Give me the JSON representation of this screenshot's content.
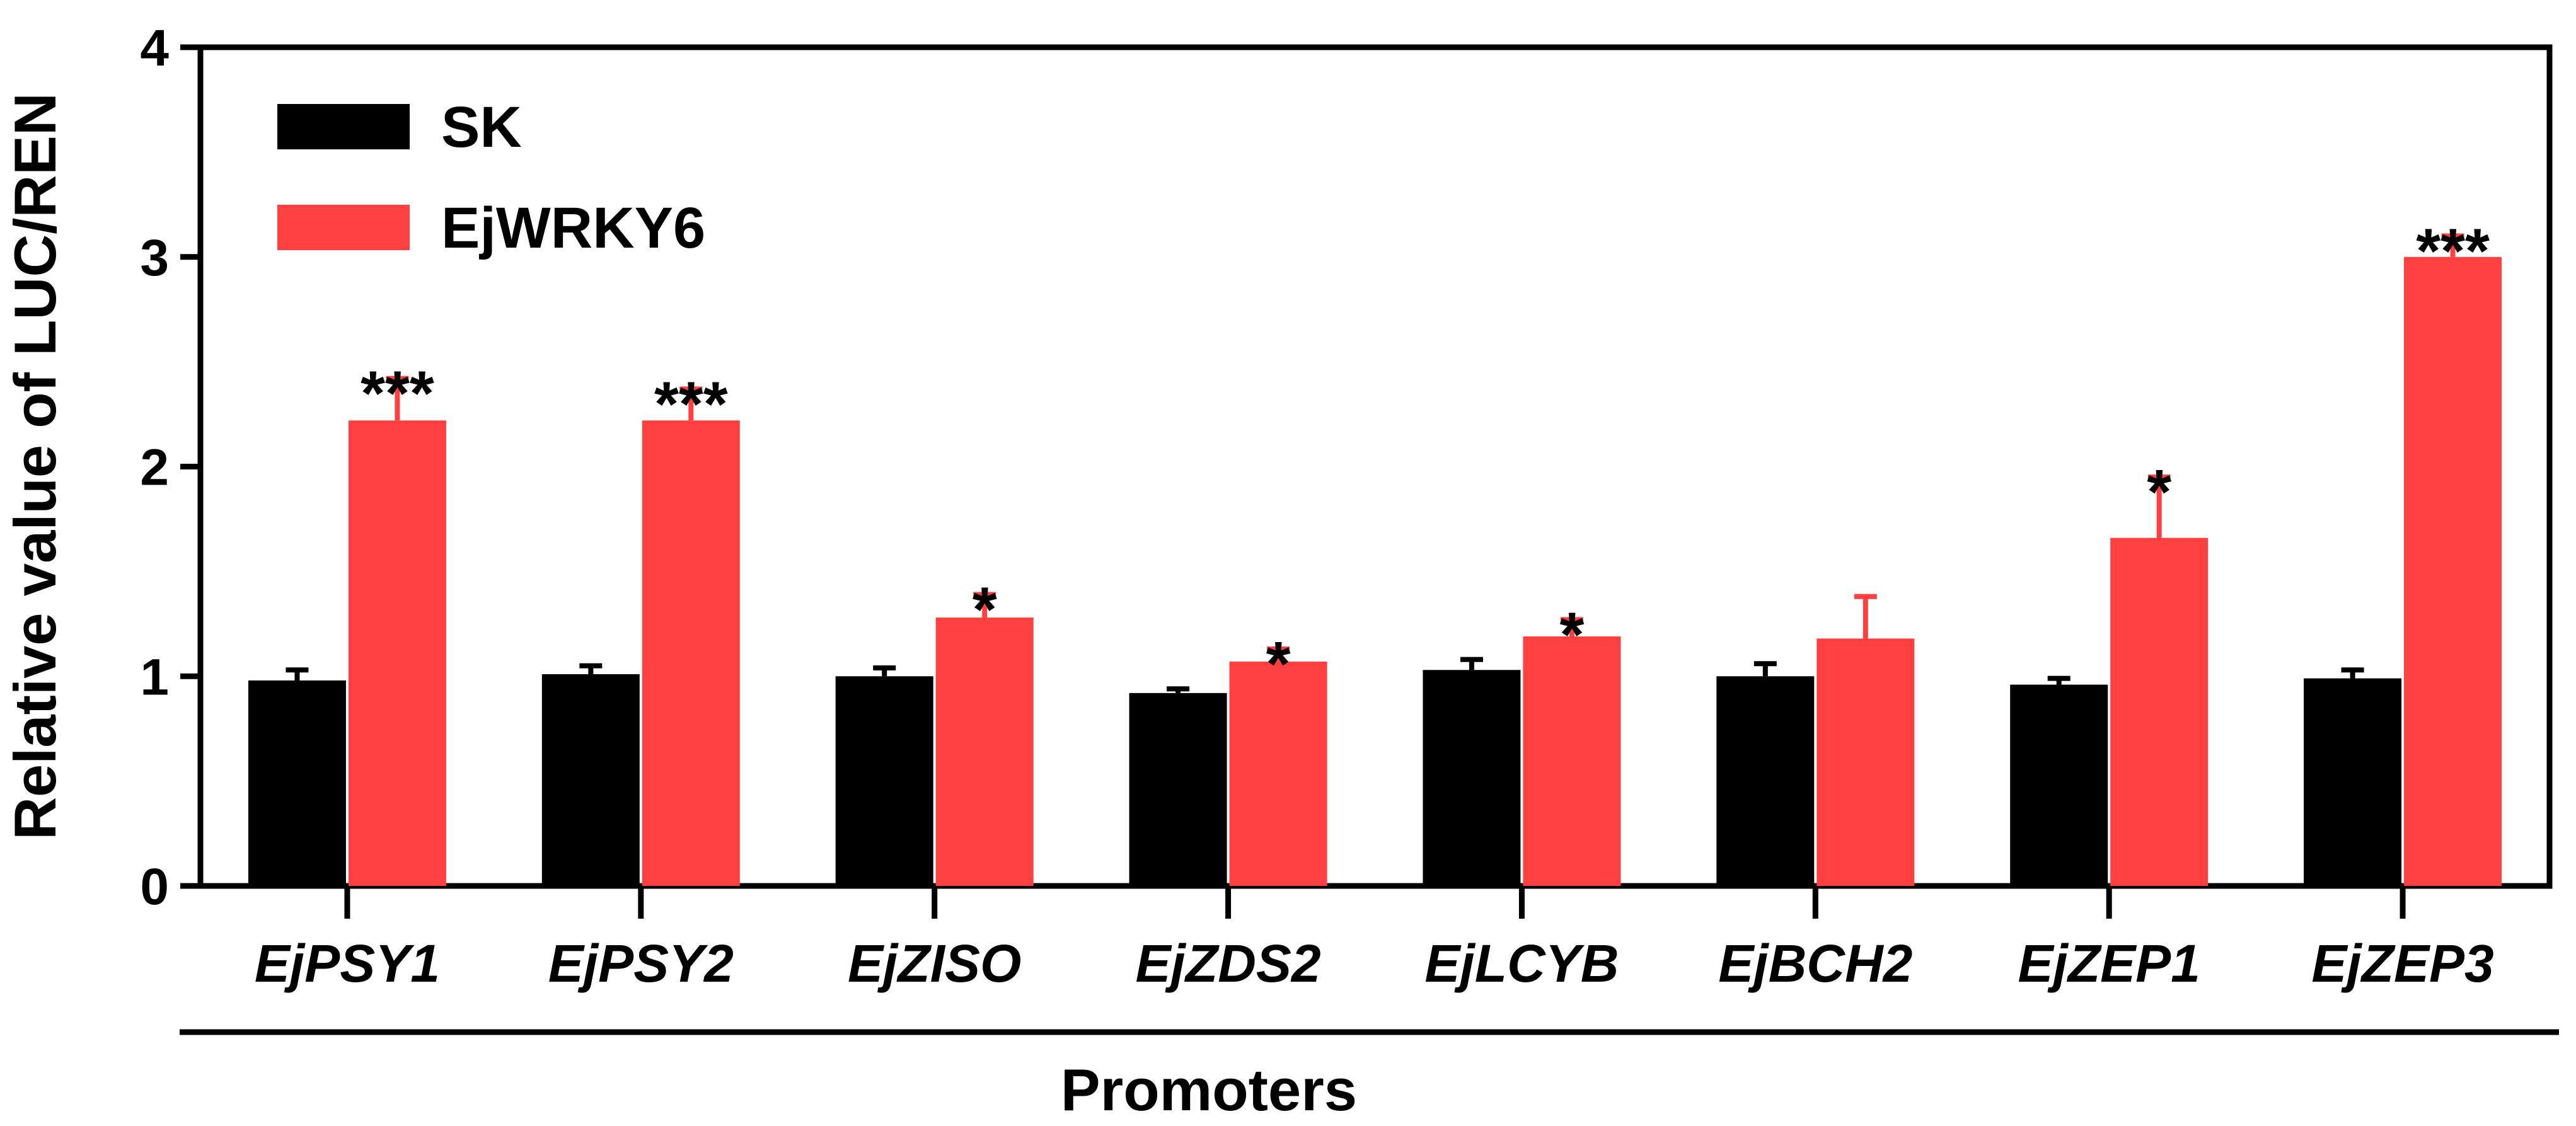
{
  "chart_data": {
    "type": "bar",
    "ylabel": "Relative value of LUC/REN",
    "xlabel": "Promoters",
    "ylim": [
      0,
      4
    ],
    "yticks": [
      "0",
      "1",
      "2",
      "3",
      "4"
    ],
    "categories": [
      "EjPSY1",
      "EjPSY2",
      "EjZISO",
      "EjZDS2",
      "EjLCYB",
      "EjBCH2",
      "EjZEP1",
      "EjZEP3"
    ],
    "series": [
      {
        "name": "SK",
        "color": "#000000",
        "values": [
          0.98,
          1.01,
          1.0,
          0.92,
          1.03,
          1.0,
          0.96,
          0.99
        ],
        "errors": [
          0.05,
          0.04,
          0.04,
          0.02,
          0.05,
          0.06,
          0.03,
          0.04
        ]
      },
      {
        "name": "EjWRKY6",
        "color": "#FF4040",
        "values": [
          2.22,
          2.22,
          1.28,
          1.07,
          1.19,
          1.18,
          1.66,
          3.0
        ],
        "errors": [
          0.2,
          0.15,
          0.11,
          0.06,
          0.08,
          0.2,
          0.29,
          0.1
        ]
      }
    ],
    "significance": [
      "***",
      "***",
      "*",
      "*",
      "*",
      "",
      "*",
      "***"
    ],
    "legend_position": "top-left",
    "grid": false
  }
}
